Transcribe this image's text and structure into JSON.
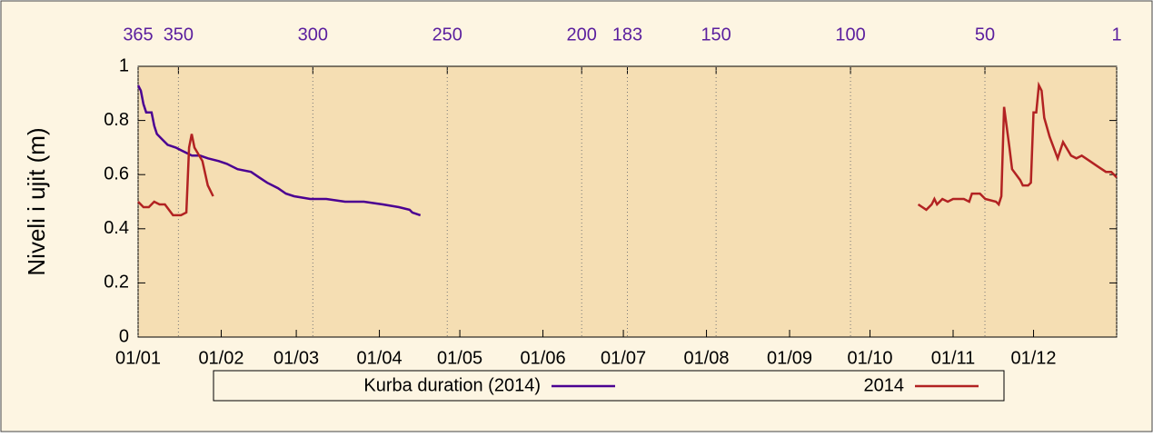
{
  "chart_data": {
    "type": "line",
    "ylabel": "Niveli i ujit (m)",
    "ylim": [
      0,
      1
    ],
    "yticks": [
      0,
      0.2,
      0.4,
      0.6,
      0.8,
      1
    ],
    "xlim": [
      0,
      365
    ],
    "xticks": [
      {
        "value": 0,
        "label": "01/01"
      },
      {
        "value": 31,
        "label": "01/02"
      },
      {
        "value": 59,
        "label": "01/03"
      },
      {
        "value": 90,
        "label": "01/04"
      },
      {
        "value": 120,
        "label": "01/05"
      },
      {
        "value": 151,
        "label": "01/06"
      },
      {
        "value": 181,
        "label": "01/07"
      },
      {
        "value": 212,
        "label": "01/08"
      },
      {
        "value": 243,
        "label": "01/09"
      },
      {
        "value": 273,
        "label": "01/10"
      },
      {
        "value": 304,
        "label": "01/11"
      },
      {
        "value": 334,
        "label": "01/12"
      }
    ],
    "x2lim": [
      365,
      1
    ],
    "x2ticks": [
      365,
      350,
      300,
      250,
      200,
      183,
      150,
      100,
      50,
      1
    ],
    "x2tick_color": "#5b1f9e",
    "grid": "x2",
    "series": [
      {
        "name": "Kurba duration (2014)",
        "color": "#4b0092",
        "axis": "x2",
        "x": [
          365,
          364,
          363,
          362,
          360,
          359,
          358,
          356,
          354,
          351,
          349,
          345,
          342,
          339,
          335,
          332,
          328,
          323,
          320,
          317,
          313,
          310,
          307,
          301,
          295,
          288,
          281,
          274,
          268,
          264,
          263,
          260
        ],
        "values": [
          0.93,
          0.91,
          0.86,
          0.83,
          0.83,
          0.78,
          0.75,
          0.73,
          0.71,
          0.7,
          0.69,
          0.67,
          0.67,
          0.66,
          0.65,
          0.64,
          0.62,
          0.61,
          0.59,
          0.57,
          0.55,
          0.53,
          0.52,
          0.51,
          0.51,
          0.5,
          0.5,
          0.49,
          0.48,
          0.47,
          0.46,
          0.45
        ]
      },
      {
        "name": "2014",
        "color": "#b22222",
        "x": [
          0,
          2,
          4,
          6,
          8,
          10,
          13,
          16,
          18,
          19,
          20,
          21,
          24,
          26,
          28,
          150,
          291,
          292.5,
          294,
          296,
          297,
          298,
          300,
          302,
          304,
          308,
          310,
          311,
          314,
          316,
          320,
          321,
          322,
          323,
          325,
          326,
          329,
          330,
          332,
          333,
          334,
          335,
          336,
          337,
          338,
          340,
          343,
          345,
          348,
          350,
          352,
          355,
          358,
          361,
          363,
          365
        ],
        "values": [
          0.5,
          0.48,
          0.48,
          0.5,
          0.49,
          0.49,
          0.45,
          0.45,
          0.46,
          0.7,
          0.75,
          0.7,
          0.65,
          0.56,
          0.52,
          null,
          0.49,
          0.48,
          0.47,
          0.49,
          0.51,
          0.49,
          0.51,
          0.5,
          0.51,
          0.51,
          0.5,
          0.53,
          0.53,
          0.51,
          0.5,
          0.49,
          0.52,
          0.85,
          0.7,
          0.62,
          0.58,
          0.56,
          0.56,
          0.57,
          0.83,
          0.83,
          0.93,
          0.91,
          0.81,
          0.74,
          0.66,
          0.72,
          0.67,
          0.66,
          0.67,
          0.65,
          0.63,
          0.61,
          0.61,
          0.59
        ]
      }
    ]
  }
}
